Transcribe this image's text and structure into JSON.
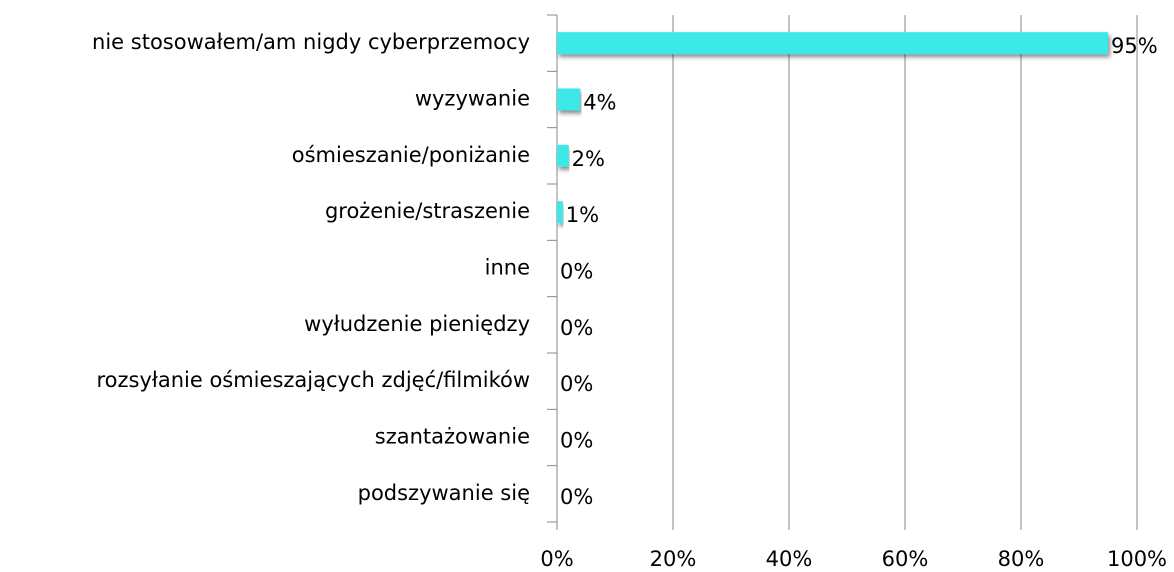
{
  "chart_data": {
    "type": "barh",
    "categories": [
      "nie stosowałem/am nigdy cyberprzemocy",
      "wyzywanie",
      "ośmieszanie/poniżanie",
      "grożenie/straszenie",
      "inne",
      "wyłudzenie pieniędzy",
      "rozsyłanie ośmieszających zdjęć/filmików",
      "szantażowanie",
      "podszywanie się"
    ],
    "values": [
      95,
      4,
      2,
      1,
      0,
      0,
      0,
      0,
      0
    ],
    "value_labels": [
      "95%",
      "4%",
      "2%",
      "1%",
      "0%",
      "0%",
      "0%",
      "0%",
      "0%"
    ],
    "color": "#3ee8e8",
    "xlim": [
      0,
      100
    ],
    "xticks": [
      {
        "value": 0,
        "label": "0%"
      },
      {
        "value": 20,
        "label": "20%"
      },
      {
        "value": 40,
        "label": "40%"
      },
      {
        "value": 60,
        "label": "60%"
      },
      {
        "value": 80,
        "label": "80%"
      },
      {
        "value": 100,
        "label": "100%"
      }
    ],
    "grid": true
  }
}
